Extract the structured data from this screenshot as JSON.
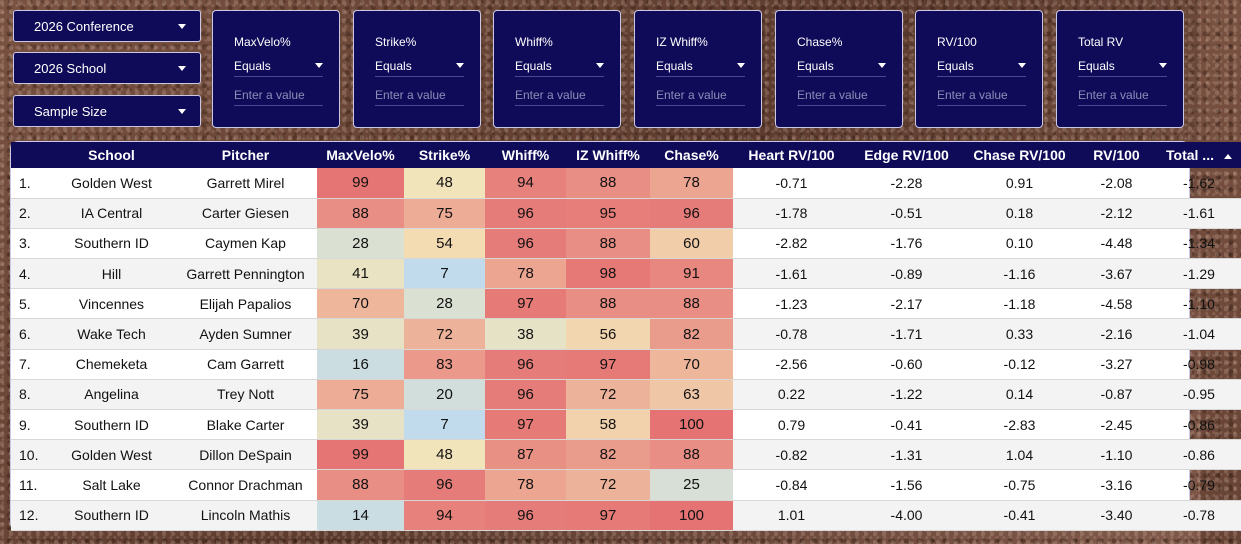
{
  "dropdowns": [
    {
      "label": "2026 Conference",
      "icon": "chevron-down-icon"
    },
    {
      "label": "2026 School",
      "icon": "chevron-down-icon"
    },
    {
      "label": "Sample Size",
      "icon": "chevron-down-icon"
    }
  ],
  "filters": [
    {
      "title": "MaxVelo%",
      "operator": "Equals",
      "placeholder": "Enter a value"
    },
    {
      "title": "Strike%",
      "operator": "Equals",
      "placeholder": "Enter a value"
    },
    {
      "title": "Whiff%",
      "operator": "Equals",
      "placeholder": "Enter a value"
    },
    {
      "title": "IZ Whiff%",
      "operator": "Equals",
      "placeholder": "Enter a value"
    },
    {
      "title": "Chase%",
      "operator": "Equals",
      "placeholder": "Enter a value"
    },
    {
      "title": "RV/100",
      "operator": "Equals",
      "placeholder": "Enter a value"
    },
    {
      "title": "Total RV",
      "operator": "Equals",
      "placeholder": "Enter a value"
    }
  ],
  "table": {
    "headers": [
      "",
      "School",
      "Pitcher",
      "MaxVelo%",
      "Strike%",
      "Whiff%",
      "IZ Whiff%",
      "Chase%",
      "Heart RV/100",
      "Edge RV/100",
      "Chase RV/100",
      "RV/100",
      "Total ..."
    ],
    "sort_icon": "sort-ascending-icon",
    "heat_colors": {
      "high": "#e57373",
      "mid": "#f4e4b8",
      "low": "#b9daf4"
    },
    "rows": [
      [
        "1.",
        "Golden West",
        "Garrett Mirel",
        "99",
        "48",
        "94",
        "88",
        "78",
        "-0.71",
        "-2.28",
        "0.91",
        "-2.08",
        "-1.62"
      ],
      [
        "2.",
        "IA Central",
        "Carter Giesen",
        "88",
        "75",
        "96",
        "95",
        "96",
        "-1.78",
        "-0.51",
        "0.18",
        "-2.12",
        "-1.61"
      ],
      [
        "3.",
        "Southern ID",
        "Caymen Kap",
        "28",
        "54",
        "96",
        "88",
        "60",
        "-2.82",
        "-1.76",
        "0.10",
        "-4.48",
        "-1.34"
      ],
      [
        "4.",
        "Hill",
        "Garrett Pennington",
        "41",
        "7",
        "78",
        "98",
        "91",
        "-1.61",
        "-0.89",
        "-1.16",
        "-3.67",
        "-1.29"
      ],
      [
        "5.",
        "Vincennes",
        "Elijah Papalios",
        "70",
        "28",
        "97",
        "88",
        "88",
        "-1.23",
        "-2.17",
        "-1.18",
        "-4.58",
        "-1.10"
      ],
      [
        "6.",
        "Wake Tech",
        "Ayden Sumner",
        "39",
        "72",
        "38",
        "56",
        "82",
        "-0.78",
        "-1.71",
        "0.33",
        "-2.16",
        "-1.04"
      ],
      [
        "7.",
        "Chemeketa",
        "Cam Garrett",
        "16",
        "83",
        "96",
        "97",
        "70",
        "-2.56",
        "-0.60",
        "-0.12",
        "-3.27",
        "-0.98"
      ],
      [
        "8.",
        "Angelina",
        "Trey Nott",
        "75",
        "20",
        "96",
        "72",
        "63",
        "0.22",
        "-1.22",
        "0.14",
        "-0.87",
        "-0.95"
      ],
      [
        "9.",
        "Southern ID",
        "Blake Carter",
        "39",
        "7",
        "97",
        "58",
        "100",
        "0.79",
        "-0.41",
        "-2.83",
        "-2.45",
        "-0.86"
      ],
      [
        "10.",
        "Golden West",
        "Dillon DeSpain",
        "99",
        "48",
        "87",
        "82",
        "88",
        "-0.82",
        "-1.31",
        "1.04",
        "-1.10",
        "-0.86"
      ],
      [
        "11.",
        "Salt Lake",
        "Connor Drachman",
        "88",
        "96",
        "78",
        "72",
        "25",
        "-0.84",
        "-1.56",
        "-0.75",
        "-3.16",
        "-0.79"
      ],
      [
        "12.",
        "Southern ID",
        "Lincoln Mathis",
        "14",
        "94",
        "96",
        "97",
        "100",
        "1.01",
        "-4.00",
        "-0.41",
        "-3.40",
        "-0.78"
      ]
    ]
  }
}
